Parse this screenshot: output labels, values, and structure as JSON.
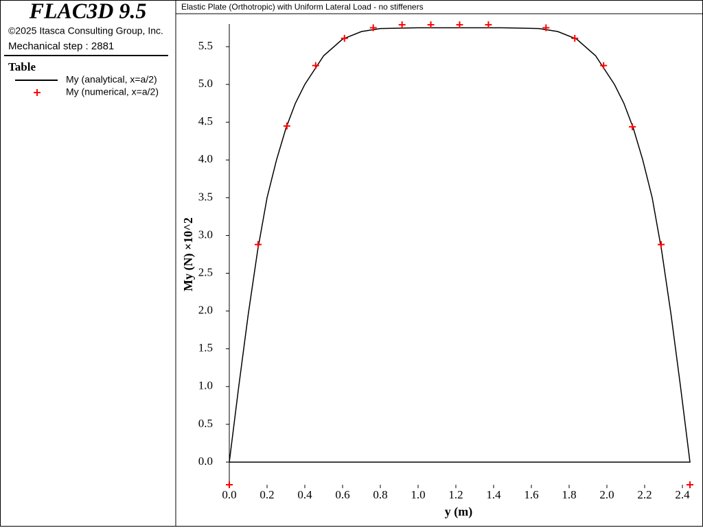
{
  "panel": {
    "product": "FLAC3D 9.5",
    "copyright": "©2025 Itasca Consulting Group, Inc.",
    "step": "Mechanical step : 2881",
    "legend_title": "Table"
  },
  "chart_data": {
    "type": "line",
    "title": "Elastic Plate (Orthotropic) with Uniform Lateral Load - no stiffeners",
    "x_label": "y (m)",
    "y_label": "My (N) ×10^2",
    "xlim": [
      0,
      2.44
    ],
    "ylim": [
      -0.3,
      5.8
    ],
    "xticks": [
      {
        "value": 0,
        "label": "0.0"
      },
      {
        "value": 0.2,
        "label": "0.2"
      },
      {
        "value": 0.4,
        "label": "0.4"
      },
      {
        "value": 0.6,
        "label": "0.6"
      },
      {
        "value": 0.8,
        "label": "0.8"
      },
      {
        "value": 1.0,
        "label": "1.0"
      },
      {
        "value": 1.2,
        "label": "1.2"
      },
      {
        "value": 1.4,
        "label": "1.4"
      },
      {
        "value": 1.6,
        "label": "1.6"
      },
      {
        "value": 1.8,
        "label": "1.8"
      },
      {
        "value": 2.0,
        "label": "2.0"
      },
      {
        "value": 2.2,
        "label": "2.2"
      },
      {
        "value": 2.4,
        "label": "2.4"
      }
    ],
    "yticks": [
      {
        "value": 0,
        "label": "0.0"
      },
      {
        "value": 0.5,
        "label": "0.5"
      },
      {
        "value": 1.0,
        "label": "1.0"
      },
      {
        "value": 1.5,
        "label": "1.5"
      },
      {
        "value": 2.0,
        "label": "2.0"
      },
      {
        "value": 2.5,
        "label": "2.5"
      },
      {
        "value": 3.0,
        "label": "3.0"
      },
      {
        "value": 3.5,
        "label": "3.5"
      },
      {
        "value": 4.0,
        "label": "4.0"
      },
      {
        "value": 4.5,
        "label": "4.5"
      },
      {
        "value": 5.0,
        "label": "5.0"
      },
      {
        "value": 5.5,
        "label": "5.5"
      }
    ],
    "series": [
      {
        "name": "My (analytical, x=a/2)",
        "color": "#000000",
        "style": "line",
        "x": [
          0,
          0.05,
          0.1,
          0.15,
          0.2,
          0.25,
          0.3,
          0.35,
          0.4,
          0.5,
          0.6,
          0.7,
          0.8,
          1.0,
          1.22,
          1.44,
          1.64,
          1.74,
          1.84,
          1.94,
          2.04,
          2.09,
          2.14,
          2.19,
          2.24,
          2.29,
          2.34,
          2.39,
          2.44,
          0
        ],
        "values": [
          0,
          1.0,
          1.95,
          2.8,
          3.5,
          4.0,
          4.42,
          4.75,
          5.0,
          5.38,
          5.6,
          5.7,
          5.74,
          5.75,
          5.75,
          5.75,
          5.74,
          5.7,
          5.6,
          5.38,
          5.0,
          4.75,
          4.42,
          4.0,
          3.5,
          2.8,
          1.95,
          1.0,
          0,
          0
        ]
      },
      {
        "name": "My (numerical, x=a/2)",
        "color": "#ff0000",
        "style": "marker",
        "x": [
          0,
          0.1525,
          0.305,
          0.4575,
          0.61,
          0.7625,
          0.915,
          1.0675,
          1.22,
          1.3725,
          1.6775,
          1.83,
          1.9825,
          2.135,
          2.2875,
          2.44
        ],
        "values": [
          -0.3,
          2.88,
          4.45,
          5.25,
          5.61,
          5.75,
          5.79,
          5.79,
          5.79,
          5.79,
          5.75,
          5.61,
          5.25,
          4.44,
          2.88,
          -0.3
        ]
      }
    ]
  }
}
